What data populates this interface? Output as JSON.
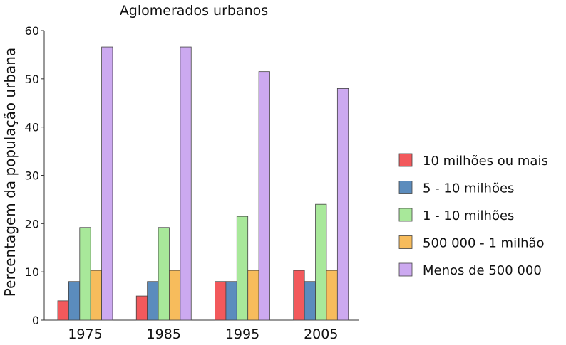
{
  "chart_data": {
    "type": "bar",
    "title": "Aglomerados urbanos",
    "xlabel": "",
    "ylabel": "Percentagem da população urbana",
    "ylim": [
      0,
      60
    ],
    "yticks": [
      0,
      10,
      20,
      30,
      40,
      50,
      60
    ],
    "categories": [
      "1975",
      "1985",
      "1995",
      "2005"
    ],
    "grid": false,
    "legend_position": "right",
    "series": [
      {
        "name": "10 milhões ou mais",
        "color": "#f2595c",
        "values": [
          4,
          5,
          8,
          10.3
        ]
      },
      {
        "name": "5 - 10 milhões",
        "color": "#5b8cbd",
        "values": [
          8,
          8,
          8,
          8
        ]
      },
      {
        "name": "1 - 10 milhões",
        "color": "#a8e89a",
        "values": [
          19.2,
          19.2,
          21.5,
          24
        ]
      },
      {
        "name": "500 000 - 1 milhão",
        "color": "#f7bc5c",
        "values": [
          10.3,
          10.3,
          10.3,
          10.3
        ]
      },
      {
        "name": "Menos de 500 000",
        "color": "#cca9f0",
        "values": [
          56.6,
          56.6,
          51.5,
          48
        ]
      }
    ]
  }
}
